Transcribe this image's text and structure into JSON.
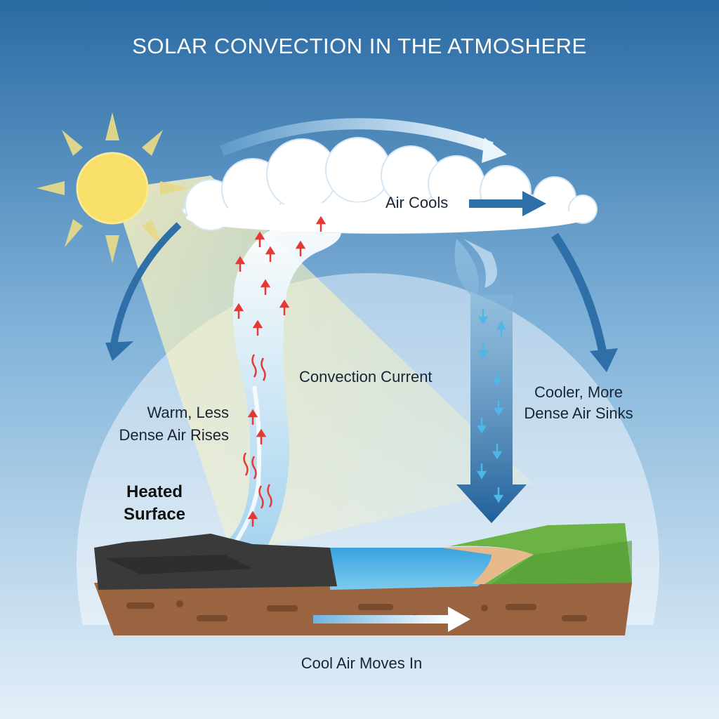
{
  "title": "SOLAR CONVECTION IN THE ATMOSHERE",
  "labels": {
    "air_cools": "Air Cools",
    "convection_current": "Convection Current",
    "warm_air_rises": "Warm, Less\nDense Air Rises",
    "cool_air_sinks": "Cooler, More\nDense Air Sinks",
    "heated_surface": "Heated\nSurface",
    "cool_air_moves_in": "Cool Air Moves In"
  },
  "colors": {
    "sky_top": "#2a6aa3",
    "sky_bottom": "#d9e9f5",
    "sun": "#f7df6a",
    "warm_arrow": "#e53935",
    "cool_arrow": "#4fb6e8",
    "flow_arrow": "#2f6fa8",
    "water": "#5bb7e6",
    "grass": "#6bb345",
    "soil": "#9b6440",
    "rock": "#3a3a3a"
  },
  "icons": [
    "sun-icon",
    "cloud-icon",
    "arrow-icon"
  ]
}
